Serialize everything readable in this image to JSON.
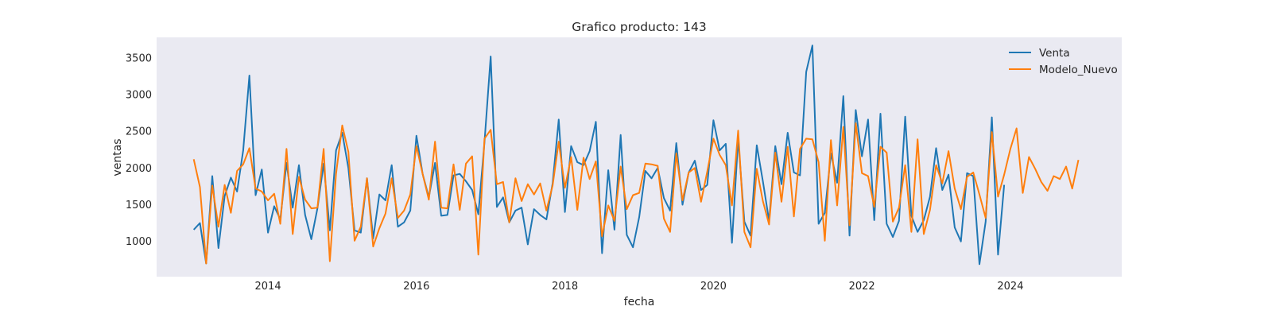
{
  "chart_data": {
    "type": "line",
    "title": "Grafico producto: 143",
    "xlabel": "fecha",
    "ylabel": "ventas",
    "xlim": [
      "2012-07-01",
      "2025-07-01"
    ],
    "ylim": [
      520,
      3780
    ],
    "x_ticks": [
      "2014",
      "2016",
      "2018",
      "2020",
      "2022",
      "2024"
    ],
    "y_ticks": [
      1000,
      1500,
      2000,
      2500,
      3000,
      3500
    ],
    "legend_placement": "top-right",
    "grid": false,
    "background": "#eaeaf2",
    "start_month": "2013-01",
    "series": [
      {
        "name": "Venta",
        "color": "#1f77b4",
        "values": [
          1160,
          1250,
          700,
          1890,
          910,
          1620,
          1870,
          1680,
          2240,
          3260,
          1630,
          1980,
          1120,
          1480,
          1300,
          2070,
          1460,
          2040,
          1360,
          1030,
          1450,
          2060,
          1150,
          2240,
          2480,
          2000,
          1150,
          1120,
          1860,
          1040,
          1640,
          1560,
          2040,
          1200,
          1260,
          1420,
          2440,
          1920,
          1600,
          2070,
          1350,
          1360,
          1900,
          1920,
          1820,
          1700,
          1370,
          2350,
          3520,
          1470,
          1600,
          1260,
          1420,
          1460,
          960,
          1440,
          1360,
          1300,
          1790,
          2660,
          1400,
          2300,
          2080,
          2040,
          2230,
          2630,
          840,
          1970,
          1160,
          2450,
          1090,
          920,
          1330,
          1960,
          1860,
          2000,
          1590,
          1420,
          2340,
          1500,
          1940,
          2100,
          1700,
          1770,
          2650,
          2240,
          2330,
          980,
          2400,
          1270,
          1080,
          2310,
          1820,
          1280,
          2300,
          1780,
          2480,
          1940,
          1900,
          3310,
          3670,
          1240,
          1390,
          2200,
          1800,
          2980,
          1080,
          2790,
          2160,
          2660,
          1290,
          2740,
          1240,
          1060,
          1280,
          2700,
          1350,
          1130,
          1290,
          1610,
          2270,
          1700,
          1910,
          1190,
          1000,
          1930,
          1890,
          690,
          1270,
          2690,
          820,
          1770
        ]
      },
      {
        "name": "Modelo_Nuevo",
        "color": "#ff7f0e",
        "values": [
          2120,
          1740,
          700,
          1760,
          1200,
          1770,
          1390,
          1960,
          2050,
          2270,
          1720,
          1680,
          1560,
          1650,
          1240,
          2260,
          1100,
          1880,
          1570,
          1450,
          1460,
          2260,
          730,
          1920,
          2580,
          2220,
          1010,
          1200,
          1860,
          930,
          1180,
          1380,
          1860,
          1320,
          1420,
          1640,
          2300,
          1920,
          1570,
          2360,
          1460,
          1450,
          2050,
          1430,
          2060,
          2160,
          820,
          2400,
          2520,
          1780,
          1810,
          1260,
          1860,
          1550,
          1780,
          1640,
          1790,
          1420,
          1760,
          2360,
          1730,
          2150,
          1430,
          2140,
          1850,
          2090,
          1070,
          1490,
          1280,
          2020,
          1440,
          1630,
          1660,
          2060,
          2050,
          2030,
          1310,
          1130,
          2200,
          1560,
          1940,
          2000,
          1540,
          1950,
          2400,
          2180,
          2040,
          1490,
          2510,
          1130,
          920,
          1990,
          1550,
          1230,
          2210,
          1540,
          2290,
          1340,
          2260,
          2400,
          2390,
          2080,
          1010,
          2380,
          1490,
          2560,
          1220,
          2610,
          1930,
          1890,
          1470,
          2290,
          2210,
          1270,
          1460,
          2040,
          1130,
          2390,
          1100,
          1430,
          2040,
          1790,
          2230,
          1720,
          1440,
          1880,
          1940,
          1640,
          1320,
          2490,
          1610,
          1910,
          2260,
          2540,
          1660,
          2150,
          1990,
          1810,
          1690,
          1890,
          1850,
          2020,
          1720,
          2110
        ]
      }
    ]
  }
}
